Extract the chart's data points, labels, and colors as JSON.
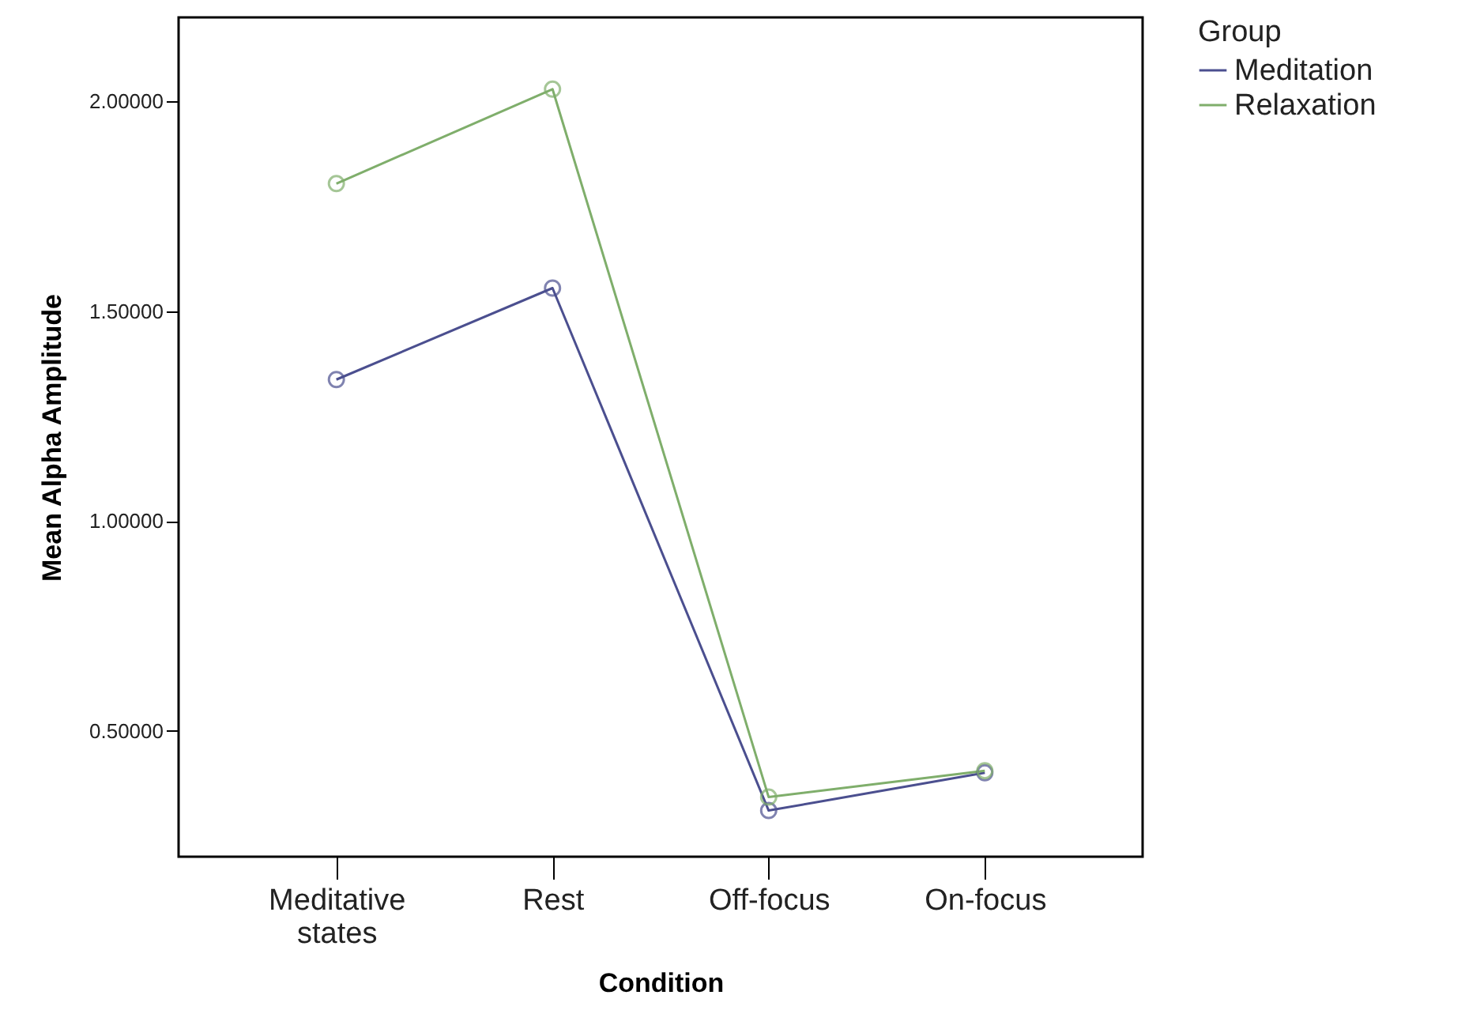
{
  "chart_data": {
    "type": "line",
    "xlabel": "Condition",
    "ylabel": "Mean Alpha Amplitude",
    "legend_title": "Group",
    "categories": [
      "Meditative states",
      "Rest",
      "Off-focus",
      "On-focus"
    ],
    "series": [
      {
        "name": "Meditation",
        "color": "#4b4f8f",
        "values": [
          1.337,
          1.555,
          0.31,
          0.4
        ]
      },
      {
        "name": "Relaxation",
        "color": "#7fae6b",
        "values": [
          1.804,
          2.029,
          0.342,
          0.405
        ]
      }
    ],
    "ylim": [
      0.2,
      2.2
    ],
    "yticks": [
      {
        "value": 0.5,
        "label": "0.50000"
      },
      {
        "value": 1.0,
        "label": "1.00000"
      },
      {
        "value": 1.5,
        "label": "1.50000"
      },
      {
        "value": 2.0,
        "label": "2.00000"
      }
    ],
    "grid": false,
    "legend": "top right",
    "marker": "circle",
    "line_style": "solid"
  }
}
